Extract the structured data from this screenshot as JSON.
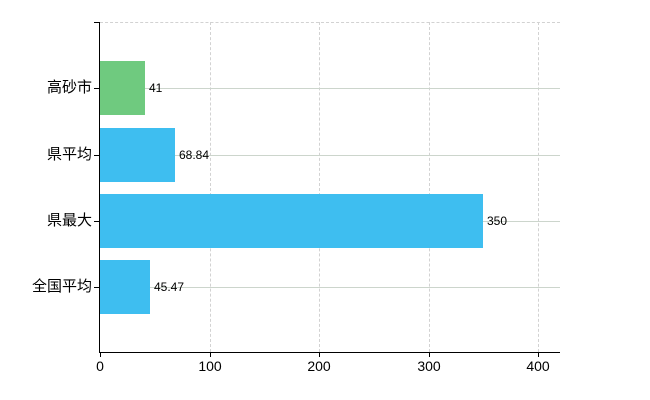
{
  "chart_data": {
    "type": "bar",
    "orientation": "horizontal",
    "title": "",
    "categories": [
      "高砂市",
      "県平均",
      "県最大",
      "全国平均"
    ],
    "series": [
      {
        "name": "values",
        "values": [
          41,
          68.84,
          350,
          45.47
        ]
      }
    ],
    "value_labels": [
      "41",
      "68.84",
      "350",
      "45.47"
    ],
    "bar_colors": [
      "#6fca7f",
      "#3ebef0",
      "#3ebef0",
      "#3ebef0"
    ],
    "x_tick_labels": [
      "0",
      "100",
      "200",
      "300",
      "400"
    ],
    "x_tick_values": [
      0,
      100,
      200,
      300,
      400
    ],
    "xlim": [
      0,
      420
    ],
    "xlabel": "",
    "ylabel": "",
    "grid": "on",
    "legend": "none"
  },
  "colors": {
    "background": "#ffffff",
    "axis": "#000000",
    "h_gridline": "#ccd5cc",
    "v_gridline": "#d2d2d2",
    "label_text": "#000000"
  }
}
